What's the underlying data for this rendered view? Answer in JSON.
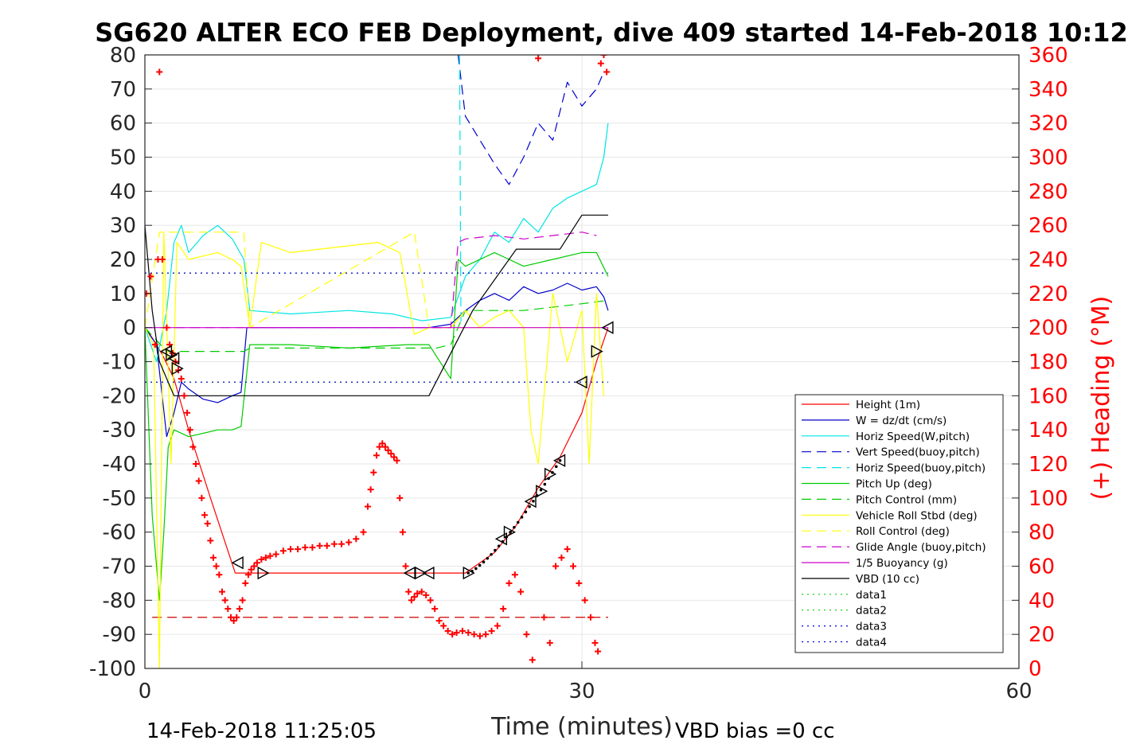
{
  "chart_data": {
    "type": "line",
    "title": "SG620 ALTER ECO FEB Deployment, dive 409 started 14-Feb-2018 10:12",
    "xlabel": "Time (minutes)",
    "ylabel_left": "",
    "ylabel_right": "(+) Heading (°M)",
    "xlim": [
      0,
      60
    ],
    "ylim_left": [
      -100,
      80
    ],
    "ylim_right": [
      0,
      360
    ],
    "x_ticks": [
      "0",
      "30",
      "60"
    ],
    "y_ticks_left": [
      "80",
      "70",
      "60",
      "50",
      "40",
      "30",
      "20",
      "10",
      "0",
      "-10",
      "-20",
      "-30",
      "-40",
      "-50",
      "-60",
      "-70",
      "-80",
      "-90",
      "-100"
    ],
    "y_ticks_right": [
      "360",
      "340",
      "320",
      "300",
      "280",
      "260",
      "240",
      "220",
      "200",
      "180",
      "160",
      "140",
      "120",
      "100",
      "80",
      "60",
      "40",
      "20",
      "0"
    ],
    "grid": true,
    "legend_position": "lower-right",
    "footer_left": "14-Feb-2018 11:25:05",
    "footer_right": "VBD bias =0 cc",
    "legend": [
      {
        "label": "Height (1m)",
        "color": "#ff0000",
        "dash": "solid"
      },
      {
        "label": "W = dz/dt (cm/s)",
        "color": "#0000cc",
        "dash": "solid"
      },
      {
        "label": "Horiz Speed(W,pitch)",
        "color": "#00e5e5",
        "dash": "solid"
      },
      {
        "label": "Vert Speed(buoy,pitch)",
        "color": "#0000cc",
        "dash": "dashed"
      },
      {
        "label": "Horiz Speed(buoy,pitch)",
        "color": "#00e5e5",
        "dash": "dashed"
      },
      {
        "label": "Pitch Up (deg)",
        "color": "#00cc00",
        "dash": "solid"
      },
      {
        "label": "Pitch Control (mm)",
        "color": "#00cc00",
        "dash": "dashed"
      },
      {
        "label": "Vehicle Roll Stbd (deg)",
        "color": "#ffff00",
        "dash": "solid"
      },
      {
        "label": "Roll Control (deg)",
        "color": "#ffff00",
        "dash": "dashed"
      },
      {
        "label": "Glide Angle (buoy,pitch)",
        "color": "#cc00cc",
        "dash": "dashed"
      },
      {
        "label": "1/5 Buoyancy (g)",
        "color": "#cc00cc",
        "dash": "solid"
      },
      {
        "label": "VBD (10 cc)",
        "color": "#000000",
        "dash": "solid"
      },
      {
        "label": "data1",
        "color": "#00cc00",
        "dash": "dotted"
      },
      {
        "label": "data2",
        "color": "#00cc00",
        "dash": "dotted"
      },
      {
        "label": "data3",
        "color": "#0000cc",
        "dash": "dotted"
      },
      {
        "label": "data4",
        "color": "#0000cc",
        "dash": "dotted"
      }
    ],
    "series": [
      {
        "name": "Height (1m)",
        "axis": "left",
        "color": "#ff0000",
        "dash": "solid",
        "x": [
          0,
          0.5,
          1.2,
          2.0,
          3.0,
          4.5,
          6.2,
          8.0,
          10,
          14,
          18,
          19.5,
          22,
          24,
          25.5,
          27,
          28.5,
          30,
          31,
          31.8
        ],
        "y": [
          0,
          -3,
          -8,
          -15,
          -30,
          -50,
          -72,
          -72,
          -72,
          -72,
          -72,
          -72,
          -72,
          -66,
          -58,
          -47,
          -38,
          -25,
          -10,
          0
        ]
      },
      {
        "name": "W = dz/dt (cm/s)",
        "axis": "left",
        "color": "#0000cc",
        "dash": "solid",
        "x": [
          0,
          0.8,
          1.5,
          2.0,
          2.5,
          3.0,
          4.0,
          5.0,
          6.0,
          6.6,
          7.0,
          10,
          14,
          18,
          19.5,
          21.0,
          22,
          23,
          24,
          25,
          26,
          27,
          28,
          29,
          30,
          31,
          31.5,
          31.8
        ],
        "y": [
          0,
          -5,
          -32,
          -25,
          -16,
          -18,
          -21,
          -22,
          -20,
          -19,
          0,
          0,
          0,
          0,
          0,
          1,
          5,
          8,
          10,
          8,
          12,
          10,
          11,
          13,
          11,
          12,
          9,
          5
        ]
      },
      {
        "name": "Horiz Speed(W,pitch)",
        "axis": "left",
        "color": "#00e5e5",
        "dash": "solid",
        "x": [
          0,
          0.8,
          1.5,
          2.0,
          2.5,
          3.0,
          4.0,
          5.0,
          6.0,
          6.8,
          7.2,
          10,
          14,
          17,
          19,
          21,
          22,
          23,
          24,
          25,
          26,
          27,
          28,
          29,
          30,
          31,
          31.5,
          31.8
        ],
        "y": [
          0,
          -10,
          5,
          25,
          30,
          22,
          27,
          30,
          26,
          20,
          5,
          4,
          5,
          4,
          2,
          3,
          15,
          20,
          28,
          25,
          32,
          28,
          35,
          38,
          40,
          42,
          50,
          60
        ]
      },
      {
        "name": "Vert Speed(buoy,pitch)",
        "axis": "left",
        "color": "#0000cc",
        "dash": "dashed",
        "x": [
          21.5,
          22,
          23,
          24,
          25,
          26,
          27,
          28,
          29,
          30,
          31,
          31.5
        ],
        "y": [
          80,
          62,
          55,
          48,
          42,
          50,
          60,
          55,
          72,
          65,
          70,
          75
        ]
      },
      {
        "name": "Horiz Speed(buoy,pitch)",
        "axis": "left",
        "color": "#00e5e5",
        "dash": "dashed",
        "x": [
          21.6,
          21.7
        ],
        "y": [
          80,
          0
        ]
      },
      {
        "name": "Pitch Up (deg)",
        "axis": "left",
        "color": "#00cc00",
        "dash": "solid",
        "x": [
          0,
          0.5,
          1.0,
          1.3,
          1.6,
          2.0,
          3.0,
          4.0,
          5.0,
          6.0,
          6.6,
          7.2,
          10,
          14,
          18,
          19.5,
          21,
          21.5,
          22,
          24,
          26,
          28,
          30,
          31,
          31.8
        ],
        "y": [
          0,
          -55,
          -80,
          -60,
          -35,
          -30,
          -32,
          -31,
          -30,
          -30,
          -29,
          -5,
          -5,
          -6,
          -5,
          -5,
          -15,
          20,
          18,
          22,
          18,
          20,
          22,
          22,
          15
        ]
      },
      {
        "name": "Pitch Control (mm)",
        "axis": "left",
        "color": "#00cc00",
        "dash": "dashed",
        "x": [
          0,
          1.5,
          6.8,
          7.2,
          20,
          21,
          22,
          26,
          28,
          30,
          31.8
        ],
        "y": [
          0,
          -7,
          -7,
          -6,
          -6,
          -5,
          5,
          5,
          6,
          7,
          8
        ]
      },
      {
        "name": "Vehicle Roll Stbd (deg)",
        "axis": "left",
        "color": "#ffff00",
        "dash": "solid",
        "x": [
          0,
          0.6,
          1.0,
          1.3,
          1.8,
          2.2,
          3.0,
          4.0,
          5.0,
          6.0,
          6.6,
          7.2,
          8.0,
          10,
          12,
          14,
          16,
          17.5,
          18.5,
          19.5,
          21,
          22,
          23,
          24,
          25,
          26,
          26.5,
          27,
          28,
          29,
          30,
          30.5,
          31,
          31.5
        ],
        "y": [
          0,
          -5,
          -100,
          28,
          -40,
          25,
          20,
          21,
          22,
          20,
          18,
          0,
          25,
          22,
          23,
          24,
          25,
          22,
          -2,
          0,
          0,
          5,
          0,
          3,
          5,
          0,
          -30,
          -40,
          10,
          -10,
          5,
          -40,
          10,
          -20
        ]
      },
      {
        "name": "Roll Control (deg)",
        "axis": "left",
        "color": "#ffff00",
        "dash": "dashed",
        "x": [
          0,
          1.0,
          6.8,
          7.2,
          18.5,
          19.5,
          21,
          22,
          26,
          28,
          30,
          31.5
        ],
        "y": [
          0,
          28,
          28,
          0,
          28,
          0,
          0,
          0,
          0,
          0,
          0,
          0
        ]
      },
      {
        "name": "Glide Angle (buoy,pitch)",
        "axis": "left",
        "color": "#cc00cc",
        "dash": "dashed",
        "x": [
          0,
          21,
          21.5,
          22,
          24,
          26,
          28,
          30,
          31
        ],
        "y": [
          0,
          0,
          25,
          26,
          27,
          26,
          27,
          28,
          27
        ]
      },
      {
        "name": "1/5 Buoyancy (g)",
        "axis": "left",
        "color": "#cc00cc",
        "dash": "solid",
        "x": [
          0,
          21,
          31.8
        ],
        "y": [
          0,
          0,
          0
        ]
      },
      {
        "name": "VBD (10 cc)",
        "axis": "left",
        "color": "#000000",
        "dash": "solid",
        "x": [
          0,
          0.5,
          1.0,
          2.0,
          19.5,
          22.5,
          25.5,
          28.5,
          30,
          31.8
        ],
        "y": [
          30,
          5,
          -10,
          -20,
          -20,
          5,
          23,
          23,
          33,
          33
        ]
      },
      {
        "name": "data1",
        "axis": "left",
        "color": "#00cc00",
        "dash": "dotted",
        "x": [
          0,
          31.8
        ],
        "y": [
          16,
          16
        ]
      },
      {
        "name": "data2",
        "axis": "left",
        "color": "#00cc00",
        "dash": "dotted",
        "x": [
          0,
          31.8
        ],
        "y": [
          -16,
          -16
        ]
      },
      {
        "name": "data3",
        "axis": "left",
        "color": "#0000cc",
        "dash": "dotted",
        "x": [
          0,
          31.8
        ],
        "y": [
          16,
          16
        ]
      },
      {
        "name": "data4",
        "axis": "left",
        "color": "#0000cc",
        "dash": "dotted",
        "x": [
          0,
          31.8
        ],
        "y": [
          -16,
          -16
        ]
      }
    ],
    "reference_line": {
      "axis": "left",
      "y": -85,
      "x": [
        0.5,
        31.8
      ],
      "color": "#cc0000",
      "dash": "dashed"
    },
    "heading_points": {
      "axis": "right",
      "color": "#ff0000",
      "marker": "+",
      "x": [
        0.1,
        0.4,
        0.7,
        0.9,
        1.0,
        1.2,
        1.5,
        1.7,
        1.9,
        2.1,
        2.3,
        2.5,
        2.7,
        2.9,
        3.1,
        3.3,
        3.5,
        3.7,
        3.9,
        4.1,
        4.3,
        4.5,
        4.7,
        4.9,
        5.1,
        5.3,
        5.5,
        5.7,
        5.9,
        6.1,
        6.3,
        6.5,
        6.7,
        6.9,
        7.1,
        7.3,
        7.5,
        7.7,
        8.0,
        8.3,
        8.6,
        9.0,
        9.5,
        10.0,
        10.5,
        11.0,
        11.5,
        12.0,
        12.5,
        13.0,
        13.5,
        14.0,
        14.5,
        15.0,
        15.3,
        15.5,
        15.7,
        15.9,
        16.1,
        16.3,
        16.5,
        16.7,
        16.9,
        17.1,
        17.3,
        17.5,
        17.7,
        17.9,
        18.1,
        18.3,
        18.5,
        18.7,
        19.0,
        19.3,
        19.6,
        19.9,
        20.2,
        20.5,
        20.8,
        21.1,
        21.4,
        21.8,
        22.2,
        22.6,
        23.0,
        23.4,
        23.8,
        24.2,
        24.6,
        25.0,
        25.4,
        25.8,
        26.2,
        26.6,
        27.0,
        27.4,
        27.8,
        28.2,
        28.6,
        29.0,
        29.4,
        29.8,
        30.2,
        30.6,
        30.9,
        31.1,
        31.3,
        31.5,
        31.7
      ],
      "y": [
        220,
        230,
        190,
        240,
        350,
        240,
        200,
        190,
        185,
        180,
        175,
        170,
        160,
        150,
        140,
        130,
        120,
        110,
        100,
        90,
        85,
        75,
        65,
        60,
        55,
        45,
        40,
        35,
        30,
        28,
        30,
        35,
        40,
        50,
        55,
        58,
        60,
        62,
        64,
        65,
        66,
        67,
        69,
        70,
        70,
        71,
        71,
        72,
        72,
        73,
        73,
        74,
        76,
        80,
        95,
        105,
        115,
        125,
        130,
        132,
        130,
        128,
        126,
        124,
        122,
        100,
        80,
        60,
        45,
        40,
        42,
        44,
        45,
        43,
        40,
        35,
        28,
        25,
        22,
        20,
        21,
        22,
        21,
        20,
        19,
        20,
        22,
        25,
        35,
        50,
        55,
        45,
        20,
        5,
        358,
        30,
        15,
        60,
        65,
        70,
        60,
        50,
        40,
        30,
        15,
        10,
        355,
        360,
        350
      ]
    },
    "triangle_markers": {
      "axis": "left",
      "color": "#000000",
      "x": [
        1.5,
        1.8,
        2.0,
        2.2,
        6.4,
        8.1,
        18.2,
        18.9,
        19.5,
        22.2,
        24.5,
        25.0,
        26.5,
        27.2,
        27.8,
        28.5,
        30.0,
        31.0,
        31.8
      ],
      "y": [
        -7,
        -8,
        -9,
        -12,
        -69,
        -72,
        -72,
        -72,
        -72,
        -72,
        -62,
        -60,
        -51,
        -48,
        -43,
        -39,
        -16,
        -7,
        0
      ],
      "dir": [
        "left",
        "right",
        "left",
        "right",
        "left",
        "right",
        "left",
        "right",
        "left",
        "right",
        "left",
        "right",
        "left",
        "right",
        "right",
        "left",
        "left",
        "right",
        "left"
      ]
    }
  }
}
